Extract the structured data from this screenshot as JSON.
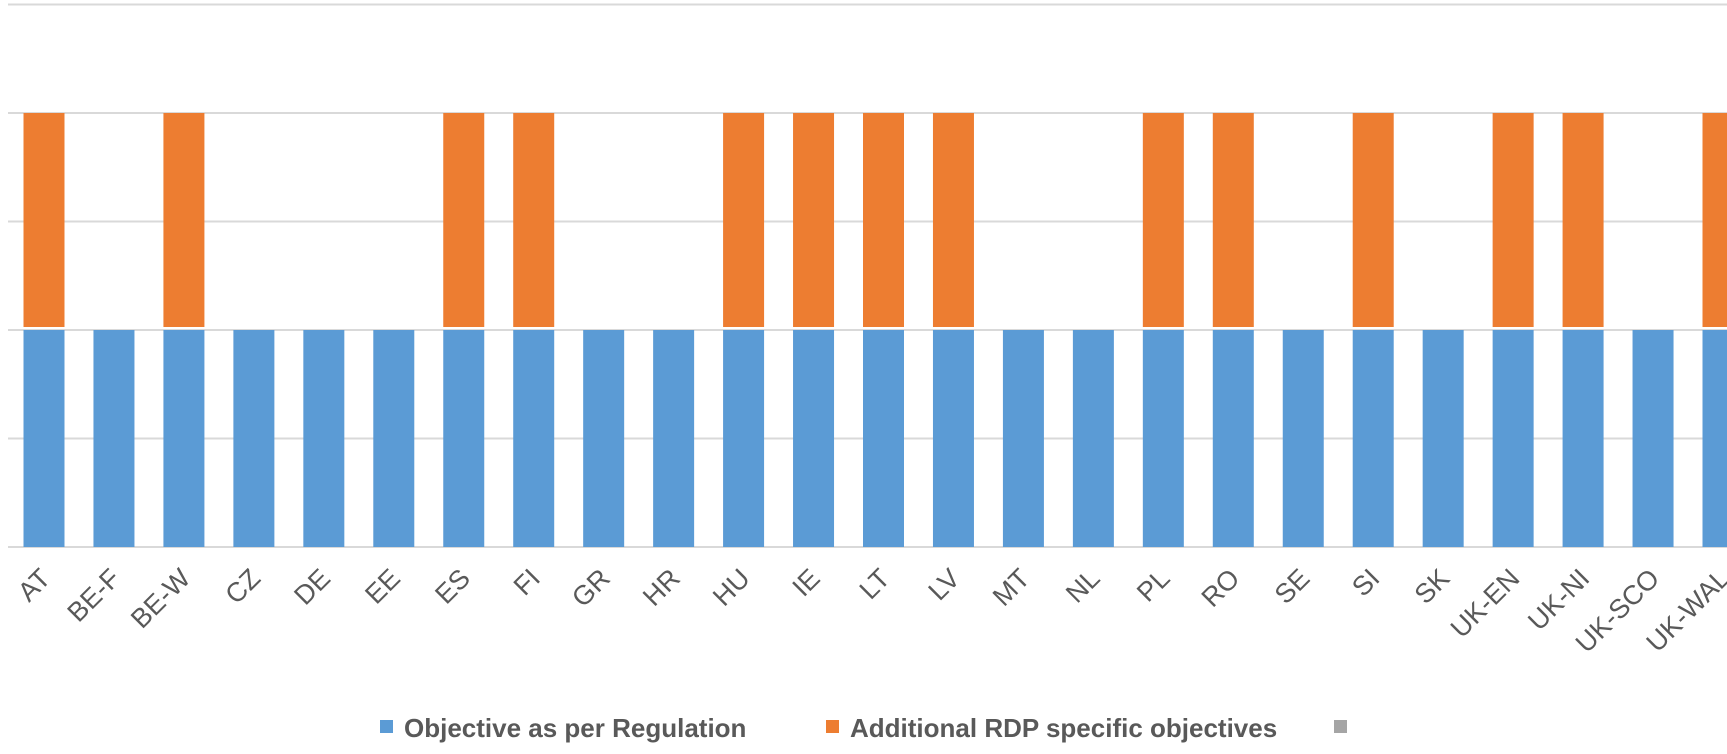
{
  "chart_data": {
    "type": "bar",
    "stacked": true,
    "title": "",
    "xlabel": "",
    "ylabel": "",
    "categories": [
      "AT",
      "BE-F",
      "BE-W",
      "CZ",
      "DE",
      "EE",
      "ES",
      "FI",
      "GR",
      "HR",
      "HU",
      "IE",
      "LT",
      "LV",
      "MT",
      "NL",
      "PL",
      "RO",
      "SE",
      "SI",
      "SK",
      "UK-EN",
      "UK-NI",
      "UK-SCO",
      "UK-WAL"
    ],
    "series": [
      {
        "name": "Objective as per Regulation",
        "color": "#5B9BD5",
        "values": [
          1,
          1,
          1,
          1,
          1,
          1,
          1,
          1,
          1,
          1,
          1,
          1,
          1,
          1,
          1,
          1,
          1,
          1,
          1,
          1,
          1,
          1,
          1,
          1,
          1
        ]
      },
      {
        "name": "Additional RDP specific objectives",
        "color": "#ED7D31",
        "values": [
          1,
          0,
          1,
          0,
          0,
          0,
          1,
          1,
          0,
          0,
          1,
          1,
          1,
          1,
          0,
          0,
          1,
          1,
          0,
          1,
          0,
          1,
          1,
          0,
          1
        ]
      },
      {
        "name": "",
        "color": "#A5A5A5",
        "values": [
          0,
          0,
          0,
          0,
          0,
          0,
          0,
          0,
          0,
          0,
          0,
          0,
          0,
          0,
          0,
          0,
          0,
          0,
          0,
          0,
          0,
          0,
          0,
          0,
          0
        ]
      }
    ],
    "ylim": [
      0,
      2.5
    ],
    "y_gridlines": [
      0,
      0.5,
      1,
      1.5,
      2,
      2.5
    ],
    "y_tick_labels_shown": false,
    "grid": true,
    "legend_position": "bottom",
    "x_tick_rotation": "-45deg"
  }
}
